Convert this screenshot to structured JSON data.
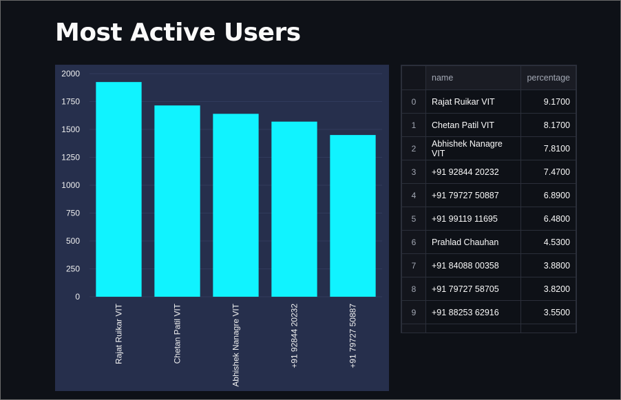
{
  "page": {
    "title": "Most Active Users"
  },
  "colors": {
    "bar": "#10f3ff",
    "panel": "#262f4c",
    "grid": "#313b5c",
    "text": "#f0f0f0"
  },
  "chart_data": {
    "type": "bar",
    "categories": [
      "Rajat Ruikar VIT",
      "Chetan Patil VIT",
      "Abhishek Nanagre VIT",
      "+91 92844 20232",
      "+91 79727 50887"
    ],
    "values": [
      1925,
      1715,
      1640,
      1570,
      1450
    ],
    "yticks": [
      "0",
      "250",
      "500",
      "750",
      "1000",
      "1250",
      "1500",
      "1750",
      "2000"
    ],
    "ylim": [
      0,
      2000
    ],
    "title": "",
    "xlabel": "",
    "ylabel": ""
  },
  "table": {
    "columns": [
      "",
      "name",
      "percentage"
    ],
    "rows": [
      [
        "0",
        "Rajat Ruikar VIT",
        "9.1700"
      ],
      [
        "1",
        "Chetan Patil VIT",
        "8.1700"
      ],
      [
        "2",
        "Abhishek Nanagre VIT",
        "7.8100"
      ],
      [
        "3",
        "+91 92844 20232",
        "7.4700"
      ],
      [
        "4",
        "+91 79727 50887",
        "6.8900"
      ],
      [
        "5",
        "+91 99119 11695",
        "6.4800"
      ],
      [
        "6",
        "Prahlad Chauhan",
        "4.5300"
      ],
      [
        "7",
        "+91 84088 00358",
        "3.8800"
      ],
      [
        "8",
        "+91 79727 58705",
        "3.8200"
      ],
      [
        "9",
        "+91 88253 62916",
        "3.5500"
      ]
    ]
  }
}
